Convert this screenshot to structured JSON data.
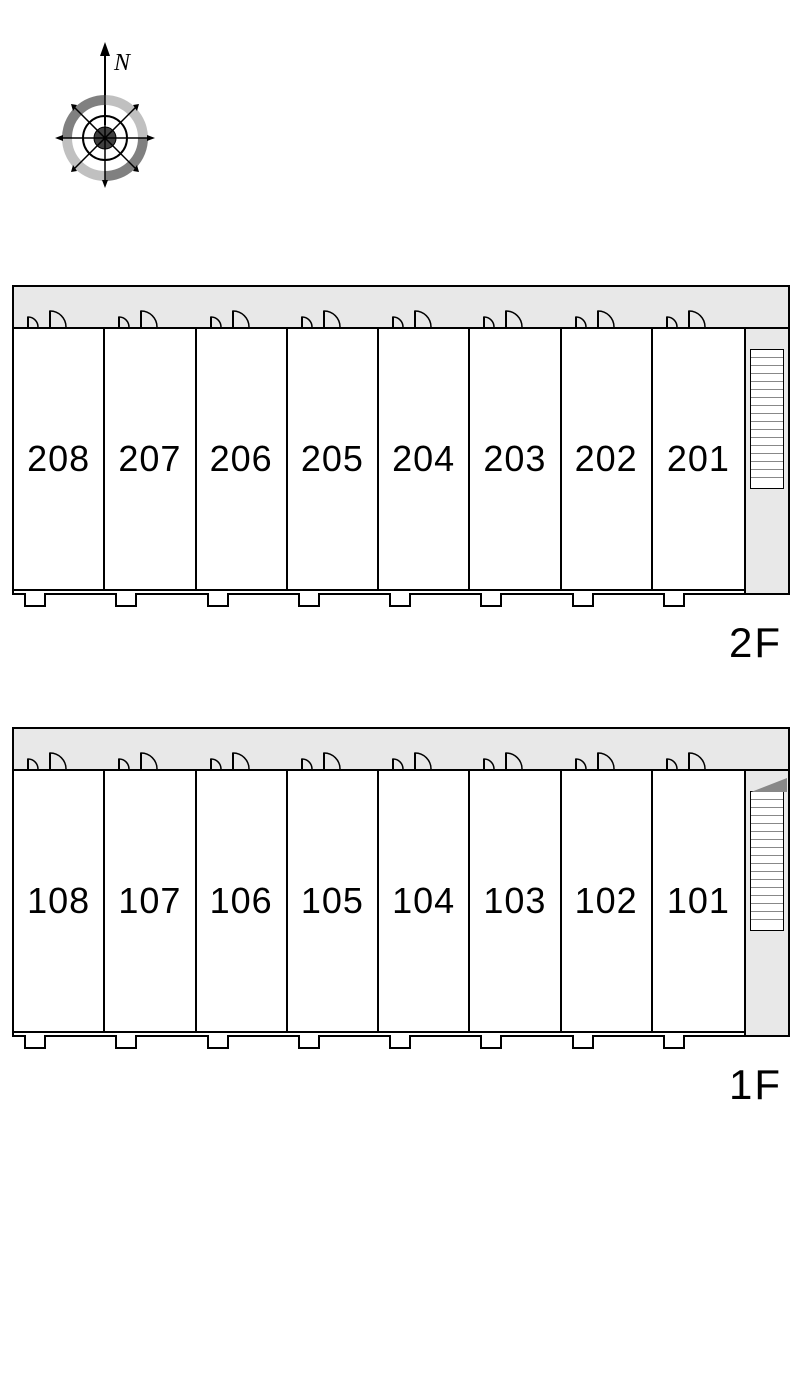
{
  "compass": {
    "label": "N",
    "ring_color": "#c0c0c0",
    "ring_color_dark": "#808080",
    "center_color": "#404040",
    "arrow_color": "#000000"
  },
  "floors": [
    {
      "label": "2F",
      "units": [
        "208",
        "207",
        "206",
        "205",
        "204",
        "203",
        "202",
        "201"
      ],
      "stairs_style": "flat"
    },
    {
      "label": "1F",
      "units": [
        "108",
        "107",
        "106",
        "105",
        "104",
        "103",
        "102",
        "101"
      ],
      "stairs_style": "triangle"
    }
  ],
  "layout": {
    "unit_count": 8,
    "corridor_color": "#e8e8e8",
    "border_color": "#000000",
    "unit_bg": "#ffffff",
    "unit_font_size": 36,
    "floor_label_font_size": 42,
    "balcony_mark_width": 22,
    "door_arc_radius": 16
  }
}
